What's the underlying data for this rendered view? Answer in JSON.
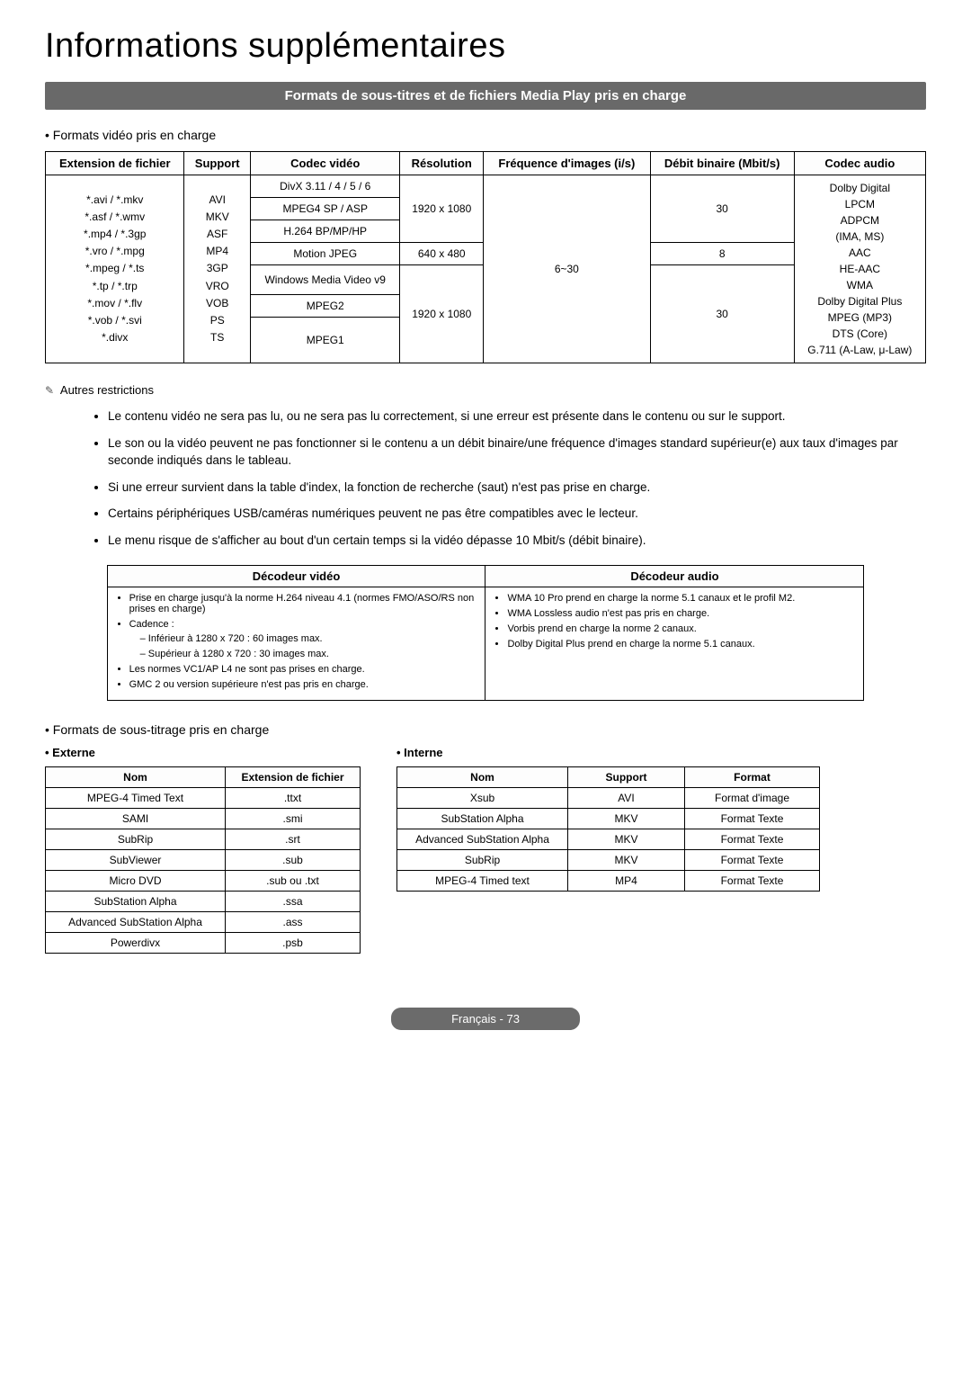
{
  "page": {
    "main_title": "Informations supplémentaires",
    "section_banner": "Formats de sous-titres et de fichiers Media Play pris en charge",
    "video_formats_heading": "Formats vidéo pris en charge",
    "restrictions_label": "Autres restrictions",
    "subtitles_heading": "Formats de sous-titrage pris en charge",
    "externe_label": "Externe",
    "interne_label": "Interne",
    "footer": "Français - 73"
  },
  "video_table": {
    "headers": {
      "ext": "Extension de fichier",
      "support": "Support",
      "codec": "Codec vidéo",
      "resolution": "Résolution",
      "freq": "Fréquence d'images (i/s)",
      "bitrate": "Débit binaire (Mbit/s)",
      "audio": "Codec audio"
    },
    "ext_cell": "*.avi / *.mkv\n*.asf / *.wmv\n*.mp4 / *.3gp\n*.vro / *.mpg\n*.mpeg / *.ts\n*.tp / *.trp\n*.mov / *.flv\n*.vob / *.svi\n*.divx",
    "support_cell": "AVI\nMKV\nASF\nMP4\n3GP\nVRO\nVOB\nPS\nTS",
    "codec_rows": [
      "DivX 3.11 / 4 / 5 / 6",
      "MPEG4 SP / ASP",
      "H.264 BP/MP/HP",
      "Motion JPEG",
      "Windows Media Video v9",
      "MPEG2",
      "MPEG1"
    ],
    "res1": "1920 x 1080",
    "res2": "640 x 480",
    "res3": "1920 x 1080",
    "freq": "6~30",
    "bitrate1": "30",
    "bitrate2": "8",
    "bitrate3": "30",
    "audio_cell": "Dolby Digital\nLPCM\nADPCM\n(IMA, MS)\nAAC\nHE-AAC\nWMA\nDolby Digital Plus\nMPEG (MP3)\nDTS (Core)\nG.711 (A-Law, μ-Law)"
  },
  "restrictions": [
    "Le contenu vidéo ne sera pas lu, ou ne sera pas lu correctement, si une erreur est présente dans le contenu ou sur le support.",
    "Le son ou la vidéo peuvent ne pas fonctionner si le contenu a un débit binaire/une fréquence d'images standard supérieur(e) aux taux d'images par seconde indiqués dans le tableau.",
    "Si une erreur survient dans la table d'index, la fonction de recherche (saut) n'est pas prise en charge.",
    "Certains périphériques USB/caméras numériques peuvent ne pas être compatibles avec le lecteur.",
    "Le menu risque de s'afficher au bout d'un certain temps si la vidéo dépasse 10 Mbit/s (débit binaire)."
  ],
  "decoder_table": {
    "video_header": "Décodeur vidéo",
    "audio_header": "Décodeur audio",
    "video_items": {
      "i1": "Prise en charge jusqu'à la norme H.264 niveau 4.1 (normes FMO/ASO/RS non prises en charge)",
      "i2": "Cadence :",
      "i2a": "Inférieur à 1280 x 720 : 60 images max.",
      "i2b": "Supérieur à 1280 x 720 : 30 images max.",
      "i3": "Les normes VC1/AP L4 ne sont pas prises en charge.",
      "i4": "GMC 2 ou version supérieure n'est pas pris en charge."
    },
    "audio_items": {
      "a1": "WMA 10 Pro prend en charge la norme 5.1 canaux et le profil M2.",
      "a2": "WMA Lossless audio n'est pas pris en charge.",
      "a3": "Vorbis prend en charge la norme 2 canaux.",
      "a4": "Dolby Digital Plus prend en charge la norme 5.1 canaux."
    }
  },
  "ext_table": {
    "headers": {
      "nom": "Nom",
      "ext": "Extension de fichier"
    },
    "rows": [
      [
        "MPEG-4 Timed Text",
        ".ttxt"
      ],
      [
        "SAMI",
        ".smi"
      ],
      [
        "SubRip",
        ".srt"
      ],
      [
        "SubViewer",
        ".sub"
      ],
      [
        "Micro DVD",
        ".sub ou .txt"
      ],
      [
        "SubStation Alpha",
        ".ssa"
      ],
      [
        "Advanced SubStation Alpha",
        ".ass"
      ],
      [
        "Powerdivx",
        ".psb"
      ]
    ]
  },
  "int_table": {
    "headers": {
      "nom": "Nom",
      "support": "Support",
      "format": "Format"
    },
    "rows": [
      [
        "Xsub",
        "AVI",
        "Format d'image"
      ],
      [
        "SubStation Alpha",
        "MKV",
        "Format Texte"
      ],
      [
        "Advanced SubStation Alpha",
        "MKV",
        "Format Texte"
      ],
      [
        "SubRip",
        "MKV",
        "Format Texte"
      ],
      [
        "MPEG-4 Timed text",
        "MP4",
        "Format Texte"
      ]
    ]
  }
}
